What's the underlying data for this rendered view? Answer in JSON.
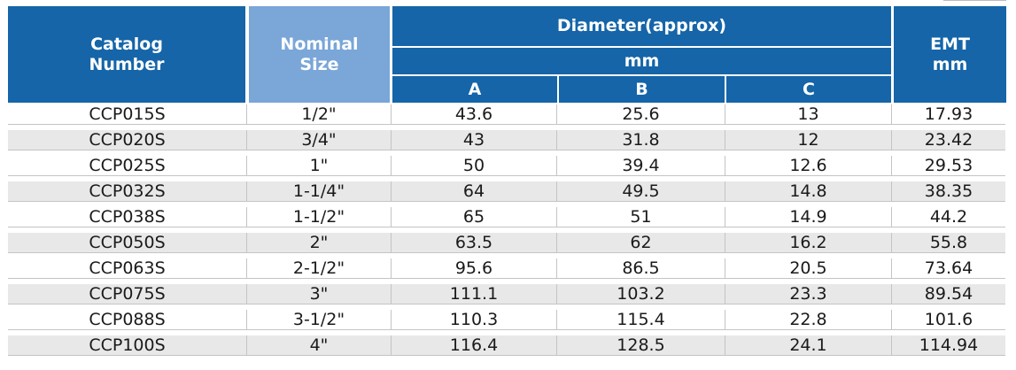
{
  "headers": {
    "catalog": "Catalog\nNumber",
    "nominal": "Nominal\nSize",
    "diameter": "Diameter(approx)",
    "unit": "mm",
    "col_a": "A",
    "col_b": "B",
    "col_c": "C",
    "emt": "EMT\nmm"
  },
  "rows": [
    [
      "CCP015S",
      "1/2\"",
      "43.6",
      "25.6",
      "13",
      "17.93"
    ],
    [
      "CCP020S",
      "3/4\"",
      "43",
      "31.8",
      "12",
      "23.42"
    ],
    [
      "CCP025S",
      "1\"",
      "50",
      "39.4",
      "12.6",
      "29.53"
    ],
    [
      "CCP032S",
      "1-1/4\"",
      "64",
      "49.5",
      "14.8",
      "38.35"
    ],
    [
      "CCP038S",
      "1-1/2\"",
      "65",
      "51",
      "14.9",
      "44.2"
    ],
    [
      "CCP050S",
      "2\"",
      "63.5",
      "62",
      "16.2",
      "55.8"
    ],
    [
      "CCP063S",
      "2-1/2\"",
      "95.6",
      "86.5",
      "20.5",
      "73.64"
    ],
    [
      "CCP075S",
      "3\"",
      "111.1",
      "103.2",
      "23.3",
      "89.54"
    ],
    [
      "CCP088S",
      "3-1/2\"",
      "110.3",
      "115.4",
      "22.8",
      "101.6"
    ],
    [
      "CCP100S",
      "4\"",
      "116.4",
      "128.5",
      "24.1",
      "114.94"
    ]
  ],
  "colors": {
    "header_dark": "#1565a8",
    "header_light": "#7aa6d8",
    "row_alt": "#e8e8e8"
  }
}
